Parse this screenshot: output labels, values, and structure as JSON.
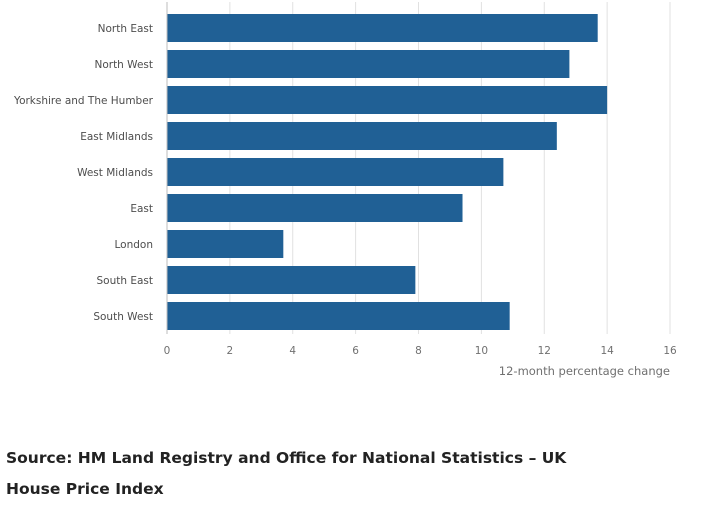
{
  "chart_data": {
    "type": "bar",
    "orientation": "horizontal",
    "title": "",
    "categories": [
      "North East",
      "North West",
      "Yorkshire and The Humber",
      "East Midlands",
      "West Midlands",
      "East",
      "London",
      "South East",
      "South West"
    ],
    "values": [
      13.7,
      12.8,
      14.0,
      12.4,
      10.7,
      9.4,
      3.7,
      7.9,
      10.9
    ],
    "xlabel": "12-month percentage change",
    "ylabel": "",
    "xlim": [
      0,
      16
    ],
    "xticks": [
      0,
      2,
      4,
      6,
      8,
      10,
      12,
      14,
      16
    ],
    "grid": "vertical",
    "legend": "none"
  },
  "colors": {
    "bar": "#206095",
    "grid": "#e1e1e1",
    "axis": "#bebebe",
    "tick_text": "#707070",
    "category_text": "#4d4d4d"
  },
  "footer": {
    "source": "Source: HM Land Registry and Office for National Statistics – UK House Price Index"
  }
}
